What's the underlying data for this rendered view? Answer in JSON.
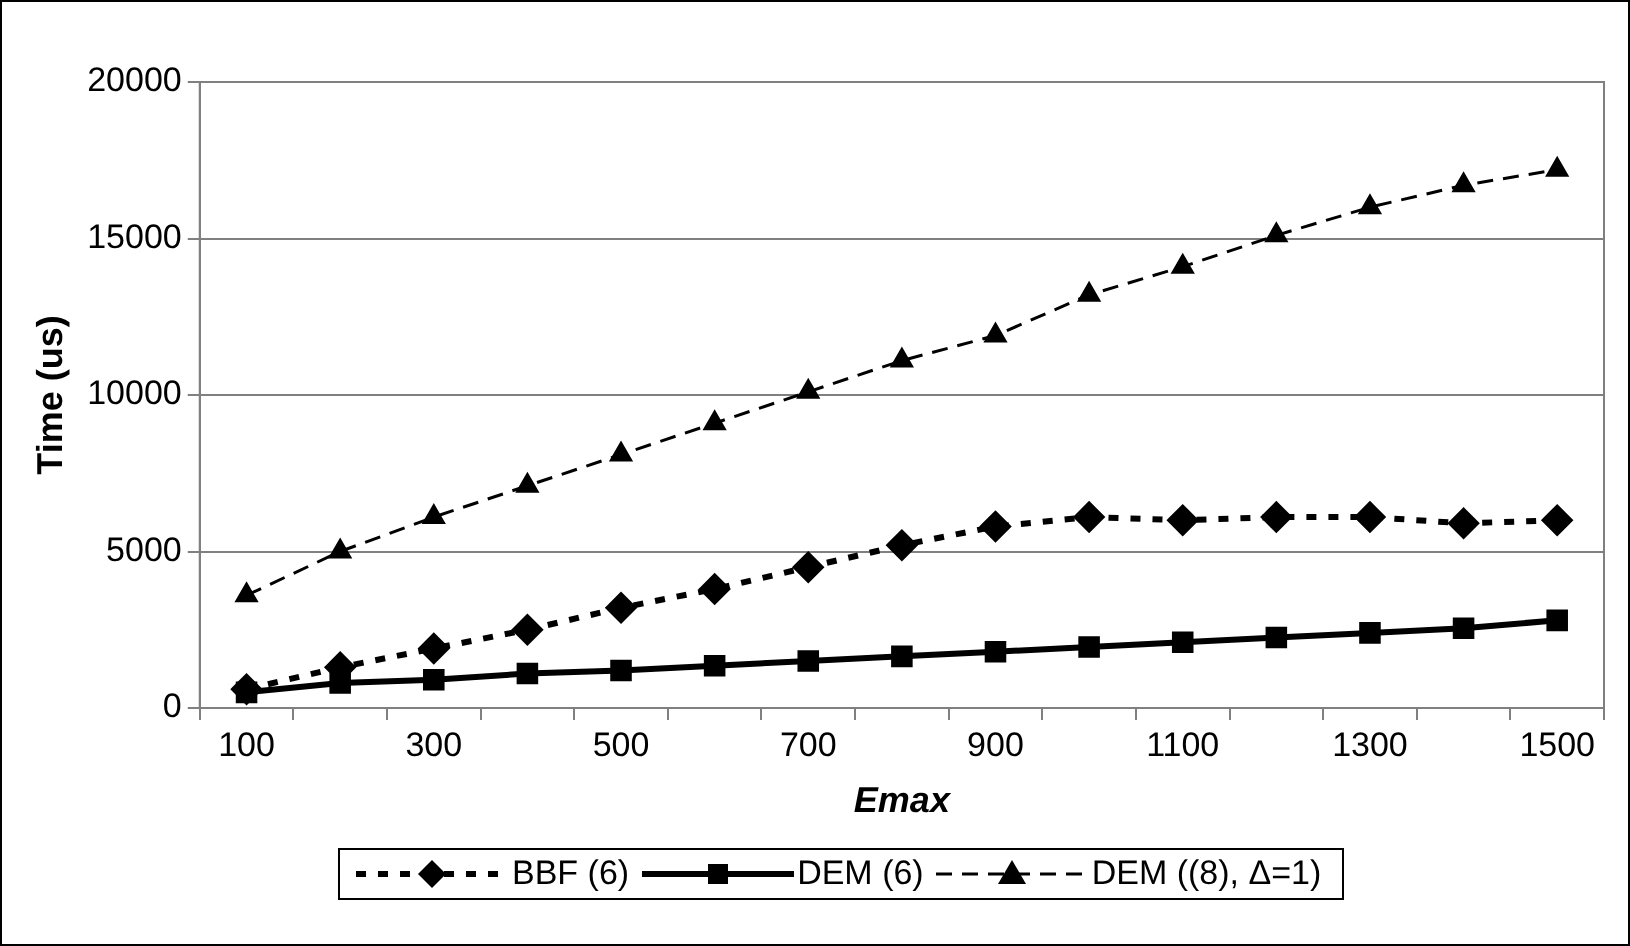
{
  "chart_data": {
    "type": "line",
    "xlabel": "Emax",
    "ylabel": "Time (us)",
    "categories": [
      "100",
      null,
      "300",
      null,
      "500",
      null,
      "700",
      null,
      "900",
      null,
      "1100",
      null,
      "1300",
      null,
      "1500"
    ],
    "ylim": [
      0,
      20000
    ],
    "yticks": [
      0,
      5000,
      10000,
      15000,
      20000
    ],
    "grid": "y",
    "legend": "bottom",
    "series": [
      {
        "name": "BBF (6)",
        "color": "#000000",
        "marker": "diamond",
        "line_style": "dotted",
        "values": [
          600,
          1300,
          1900,
          2500,
          3200,
          3800,
          4500,
          5200,
          5800,
          6100,
          6000,
          6100,
          6100,
          5900,
          6000
        ]
      },
      {
        "name": "DEM (6)",
        "color": "#000000",
        "marker": "square",
        "line_style": "solid",
        "values": [
          500,
          800,
          900,
          1100,
          1200,
          1350,
          1500,
          1650,
          1800,
          1950,
          2100,
          2250,
          2400,
          2550,
          2800
        ]
      },
      {
        "name": "DEM ((8), Δ=1)",
        "color": "#000000",
        "marker": "triangle",
        "line_style": "dashed",
        "values": [
          3600,
          5000,
          6100,
          7100,
          8100,
          9100,
          10100,
          11100,
          11900,
          13200,
          14100,
          15100,
          16000,
          16700,
          17200
        ]
      }
    ]
  }
}
